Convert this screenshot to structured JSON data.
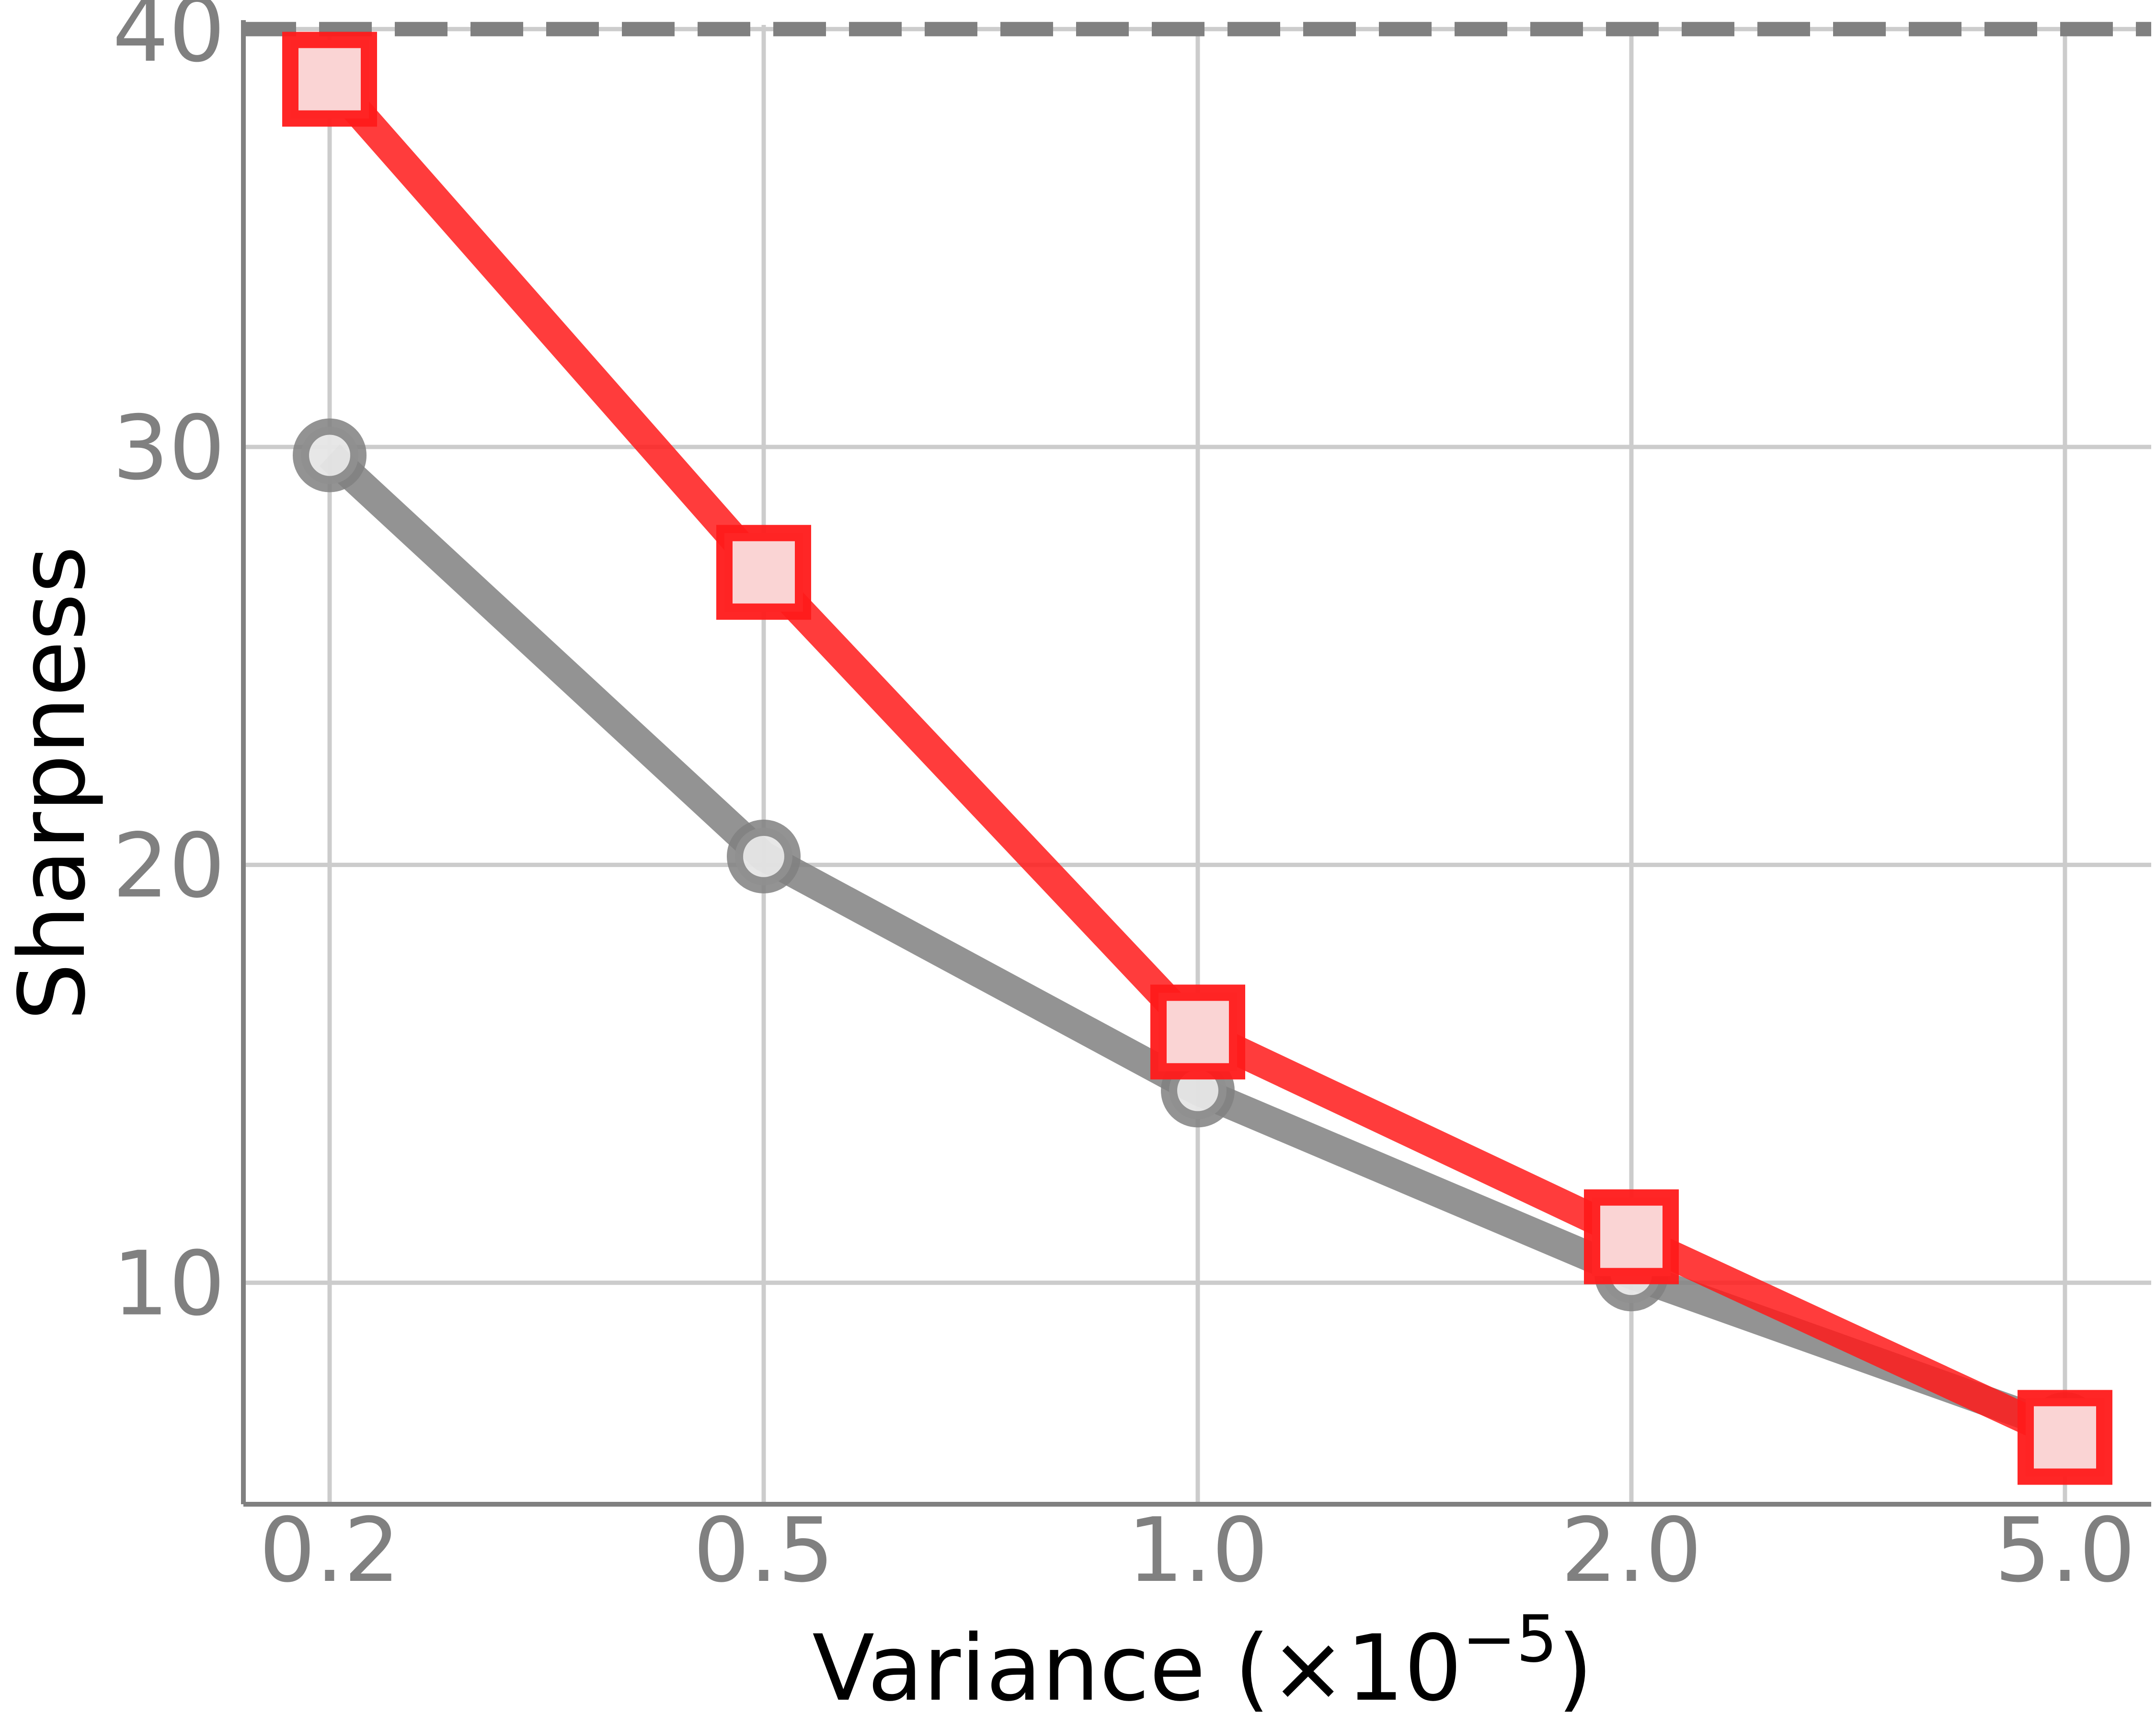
{
  "chart_data": {
    "type": "line",
    "x_labels": [
      "0.2",
      "0.5",
      "1.0",
      "2.0",
      "5.0"
    ],
    "xlabel": "Variance (×10",
    "xlabel_exponent": "−5",
    "xlabel_close": ")",
    "ylabel": "Sharpness",
    "ylim": [
      4.7,
      40.1
    ],
    "y_ticks": [
      10,
      20,
      30,
      40
    ],
    "grid": true,
    "reference_line": {
      "y": 40,
      "style": "dashed",
      "color": "#808080"
    },
    "series": [
      {
        "color": "#808080",
        "marker": "circle",
        "values": [
          29.8,
          20.2,
          14.6,
          10.2,
          6.5
        ]
      },
      {
        "color": "#ff1a1a",
        "marker": "square",
        "values": [
          38.8,
          27.0,
          16.0,
          11.1,
          6.3
        ]
      }
    ]
  }
}
